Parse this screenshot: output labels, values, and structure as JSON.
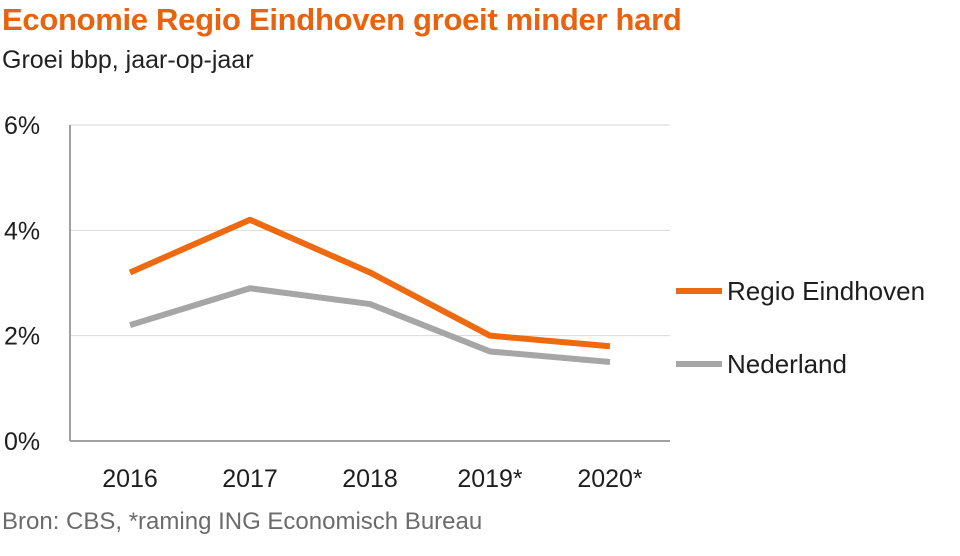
{
  "title": "Economie Regio Eindhoven groeit minder hard",
  "subtitle": "Groei bbp, jaar-op-jaar",
  "source": "Bron: CBS, *raming ING Economisch Bureau",
  "colors": {
    "accent": "#e8620f",
    "series_regio": "#ee6a10",
    "series_nl": "#a6a6a6",
    "grid": "#d9d9d9",
    "axis": "#a0a0a0"
  },
  "chart_data": {
    "type": "line",
    "categories": [
      "2016",
      "2017",
      "2018",
      "2019*",
      "2020*"
    ],
    "series": [
      {
        "name": "Regio Eindhoven",
        "values": [
          3.2,
          4.2,
          3.2,
          2.0,
          1.8
        ]
      },
      {
        "name": "Nederland",
        "values": [
          2.2,
          2.9,
          2.6,
          1.7,
          1.5
        ]
      }
    ],
    "ylim": [
      0,
      6
    ],
    "yticks": [
      0,
      2,
      4,
      6
    ],
    "ytick_labels": [
      "0%",
      "2%",
      "4%",
      "6%"
    ],
    "grid": true,
    "legend_position": "right"
  }
}
